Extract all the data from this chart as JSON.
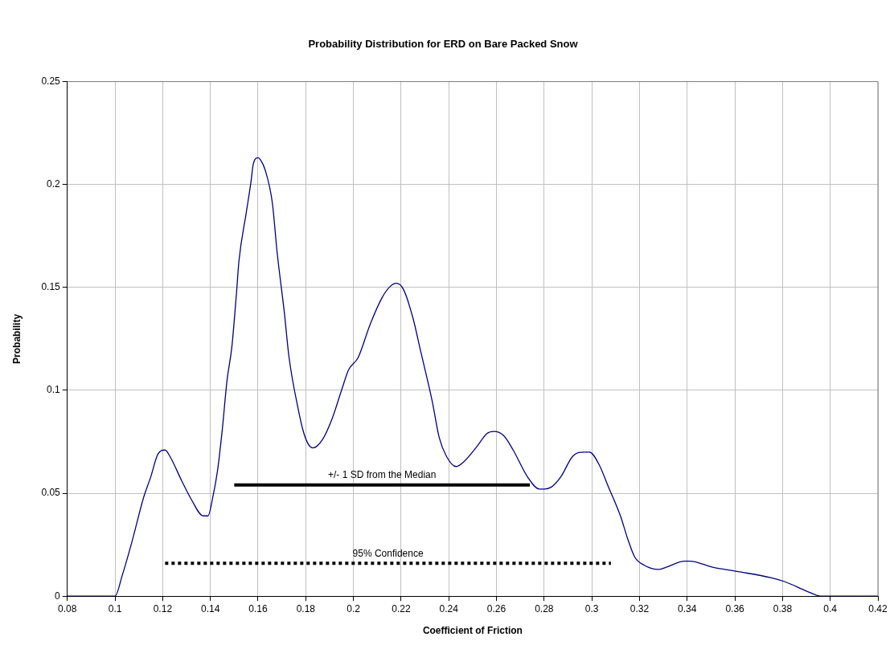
{
  "chart_data": {
    "type": "line",
    "title": "Probability Distribution for ERD on Bare Packed Snow",
    "xlabel": "Coefficient of Friction",
    "ylabel": "Probability",
    "xlim": [
      0.08,
      0.42
    ],
    "xticks": [
      0.08,
      0.1,
      0.12,
      0.14,
      0.16,
      0.18,
      0.2,
      0.22,
      0.24,
      0.26,
      0.28,
      0.3,
      0.32,
      0.34,
      0.36,
      0.38,
      0.4,
      0.42
    ],
    "ylim": [
      0,
      0.25
    ],
    "yticks": [
      0,
      0.05,
      0.1,
      0.15,
      0.2,
      0.25
    ],
    "grid": true,
    "marker": "none",
    "series": [
      {
        "color": "#000080",
        "line_style": "solid",
        "x": [
          0.08,
          0.1,
          0.103,
          0.107,
          0.112,
          0.115,
          0.118,
          0.121,
          0.123,
          0.128,
          0.132,
          0.137,
          0.139,
          0.141,
          0.143,
          0.145,
          0.147,
          0.149,
          0.151,
          0.152,
          0.155,
          0.157,
          0.158,
          0.16,
          0.161,
          0.163,
          0.166,
          0.168,
          0.171,
          0.173,
          0.177,
          0.179,
          0.181,
          0.183,
          0.187,
          0.191,
          0.195,
          0.198,
          0.202,
          0.207,
          0.212,
          0.215,
          0.218,
          0.221,
          0.225,
          0.228,
          0.233,
          0.236,
          0.239,
          0.243,
          0.246,
          0.252,
          0.256,
          0.259,
          0.263,
          0.267,
          0.273,
          0.278,
          0.28,
          0.283,
          0.287,
          0.292,
          0.297,
          0.299,
          0.303,
          0.307,
          0.312,
          0.315,
          0.318,
          0.322,
          0.328,
          0.331,
          0.339,
          0.341,
          0.351,
          0.361,
          0.375,
          0.381,
          0.391,
          0.396,
          0.402,
          0.42
        ],
        "values": [
          0,
          0,
          0.01,
          0.026,
          0.048,
          0.058,
          0.069,
          0.071,
          0.068,
          0.056,
          0.047,
          0.039,
          0.039,
          0.048,
          0.061,
          0.081,
          0.105,
          0.121,
          0.148,
          0.163,
          0.186,
          0.201,
          0.21,
          0.213,
          0.212,
          0.207,
          0.191,
          0.167,
          0.138,
          0.116,
          0.09,
          0.08,
          0.074,
          0.072,
          0.076,
          0.086,
          0.1,
          0.11,
          0.116,
          0.132,
          0.145,
          0.15,
          0.152,
          0.149,
          0.135,
          0.12,
          0.095,
          0.077,
          0.068,
          0.063,
          0.065,
          0.073,
          0.079,
          0.08,
          0.078,
          0.071,
          0.058,
          0.052,
          0.052,
          0.053,
          0.058,
          0.068,
          0.07,
          0.07,
          0.064,
          0.053,
          0.039,
          0.028,
          0.019,
          0.015,
          0.013,
          0.014,
          0.017,
          0.017,
          0.014,
          0.012,
          0.009,
          0.007,
          0.002,
          0,
          0,
          0
        ]
      },
      {
        "name": "+/- 1 SD from the Median",
        "color": "#000000",
        "line_style": "solid",
        "x": [
          0.15,
          0.274
        ],
        "values": [
          0.054,
          0.054
        ]
      },
      {
        "name": "95% Confidence",
        "color": "#000000",
        "line_style": "dotted",
        "x": [
          0.121,
          0.308
        ],
        "values": [
          0.016,
          0.016
        ]
      }
    ]
  }
}
